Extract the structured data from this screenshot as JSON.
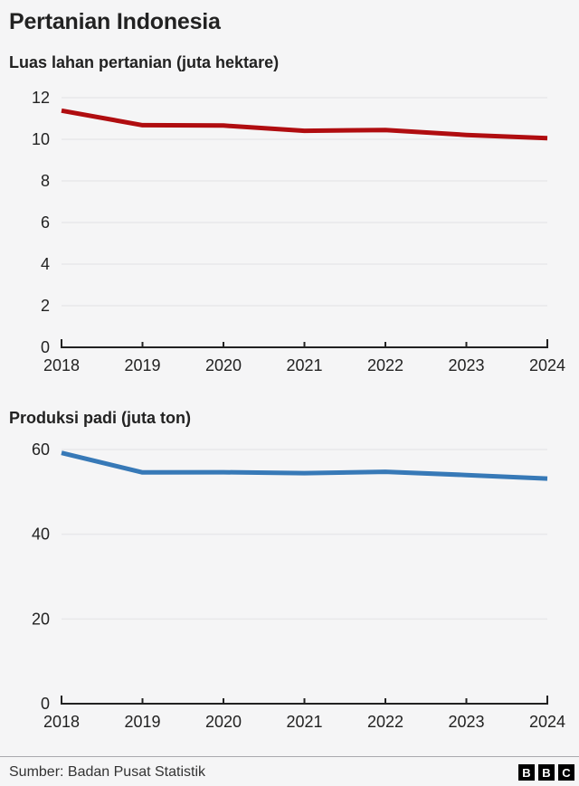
{
  "title": "Pertanian Indonesia",
  "footer": {
    "source": "Sumber: Badan Pusat Statistik",
    "logo_letters": [
      "B",
      "B",
      "C"
    ]
  },
  "colors": {
    "background": "#f5f5f6",
    "grid": "#e8e8ea",
    "axis": "#222222",
    "tick_text": "#222222",
    "red_line": "#b00d10",
    "blue_line": "#3779b7",
    "divider": "#a9a9ad"
  },
  "chart_data": [
    {
      "type": "line",
      "title": "Luas lahan pertanian (juta hektare)",
      "x": [
        "2018",
        "2019",
        "2020",
        "2021",
        "2022",
        "2023",
        "2024"
      ],
      "values": [
        11.38,
        10.68,
        10.66,
        10.41,
        10.45,
        10.21,
        10.05
      ],
      "xlabel": "",
      "ylabel": "juta hektare",
      "ylim": [
        0,
        12
      ],
      "yticks": [
        0,
        2,
        4,
        6,
        8,
        10,
        12
      ],
      "line_color": "#b00d10",
      "grid": true,
      "legend": "none"
    },
    {
      "type": "line",
      "title": "Produksi padi (juta ton)",
      "x": [
        "2018",
        "2019",
        "2020",
        "2021",
        "2022",
        "2023",
        "2024"
      ],
      "values": [
        59.2,
        54.6,
        54.65,
        54.42,
        54.75,
        53.98,
        53.14
      ],
      "xlabel": "",
      "ylabel": "juta ton",
      "ylim": [
        0,
        60
      ],
      "yticks": [
        0,
        20,
        40,
        60
      ],
      "line_color": "#3779b7",
      "grid": true,
      "legend": "none"
    }
  ]
}
